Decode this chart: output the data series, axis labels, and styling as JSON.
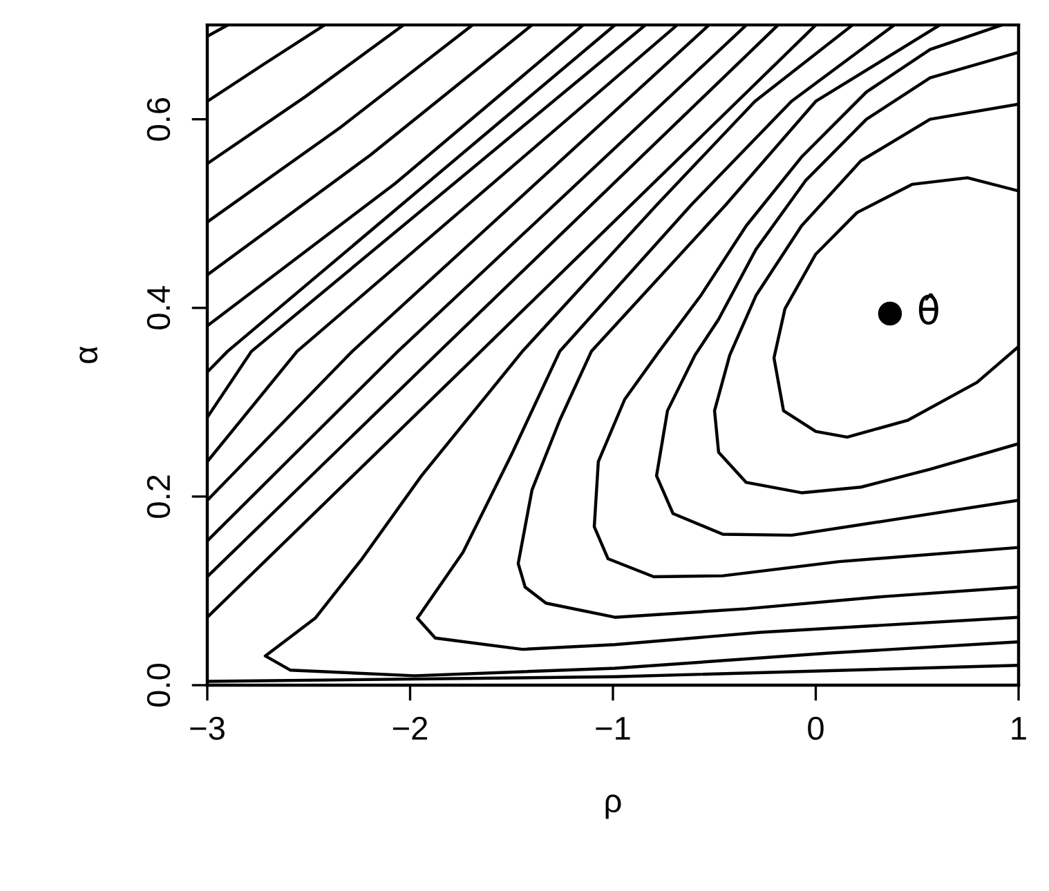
{
  "chart_data": {
    "type": "line",
    "xlabel": "ρ",
    "ylabel": "α",
    "xlim": [
      -3,
      1
    ],
    "ylim": [
      0,
      0.7
    ],
    "xticks": [
      {
        "value": -3,
        "label": "−3"
      },
      {
        "value": -2,
        "label": "−2"
      },
      {
        "value": -1,
        "label": "−1"
      },
      0,
      1
    ],
    "yticks": [
      {
        "value": 0,
        "label": "0.0"
      },
      {
        "value": 0.2,
        "label": "0.2"
      },
      {
        "value": 0.4,
        "label": "0.4"
      },
      {
        "value": 0.6,
        "label": "0.6"
      }
    ],
    "grid": false,
    "legend": false,
    "marker": "none",
    "line_style": "solid",
    "annotations": [
      {
        "text": "θ̂",
        "x": 0.366,
        "y": 0.394
      }
    ],
    "series": [
      {
        "color": "#000000",
        "x": [
          1.0,
          0.748,
          0.475,
          0.203,
          0.0,
          -0.152,
          -0.206,
          -0.159,
          0.0,
          0.155,
          0.455,
          0.795,
          1.0
        ],
        "values": [
          0.524,
          0.538,
          0.531,
          0.501,
          0.457,
          0.399,
          0.347,
          0.291,
          0.269,
          0.263,
          0.281,
          0.321,
          0.359
        ]
      },
      {
        "color": "#000000",
        "x": [
          1.0,
          0.564,
          0.223,
          -0.07,
          -0.295,
          -0.424,
          -0.499,
          -0.479,
          -0.343,
          -0.07,
          0.223,
          0.564,
          1.0
        ],
        "values": [
          0.616,
          0.6,
          0.556,
          0.487,
          0.413,
          0.35,
          0.291,
          0.247,
          0.215,
          0.204,
          0.21,
          0.229,
          0.256
        ]
      },
      {
        "color": "#000000",
        "x": [
          1.0,
          0.564,
          0.25,
          -0.05,
          -0.295,
          -0.479,
          -0.595,
          -0.731,
          -0.785,
          -0.704,
          -0.458,
          -0.118,
          0.339,
          1.0
        ],
        "values": [
          0.671,
          0.644,
          0.6,
          0.535,
          0.462,
          0.388,
          0.35,
          0.291,
          0.222,
          0.182,
          0.16,
          0.159,
          0.174,
          0.196
        ]
      },
      {
        "color": "#000000",
        "x": [
          0.918,
          0.564,
          0.25,
          -0.07,
          -0.343,
          -0.567,
          -0.772,
          -0.942,
          -1.072,
          -1.092,
          -1.024,
          -0.799,
          -0.458,
          0.114,
          1.0
        ],
        "values": [
          0.7,
          0.674,
          0.629,
          0.56,
          0.487,
          0.413,
          0.354,
          0.303,
          0.237,
          0.168,
          0.134,
          0.115,
          0.116,
          0.131,
          0.146
        ]
      },
      {
        "color": "#000000",
        "x": [
          0.612,
          0.0,
          -0.445,
          -1.106,
          -1.262,
          -1.399,
          -1.467,
          -1.433,
          -1.33,
          -0.99,
          -0.343,
          0.339,
          1.0
        ],
        "values": [
          0.7,
          0.619,
          0.509,
          0.354,
          0.281,
          0.207,
          0.129,
          0.104,
          0.087,
          0.072,
          0.081,
          0.094,
          0.104
        ]
      },
      {
        "color": "#000000",
        "x": [
          0.387,
          -0.12,
          -0.615,
          -1.262,
          -1.501,
          -1.739,
          -1.964,
          -1.876,
          -1.446,
          -0.99,
          -0.274,
          1.0
        ],
        "values": [
          0.7,
          0.619,
          0.509,
          0.354,
          0.244,
          0.141,
          0.071,
          0.05,
          0.038,
          0.043,
          0.056,
          0.072
        ]
      },
      {
        "color": "#000000",
        "x": [
          0.182,
          -0.3,
          -0.785,
          -1.446,
          -1.944,
          -2.237,
          -2.468,
          -2.714,
          -2.591,
          -1.978,
          -0.99,
          0.066,
          1.0
        ],
        "values": [
          0.7,
          0.619,
          0.509,
          0.354,
          0.222,
          0.134,
          0.071,
          0.031,
          0.016,
          0.01,
          0.018,
          0.034,
          0.046
        ]
      },
      {
        "color": "#000000",
        "x": [
          -3,
          -0.99,
          1.0
        ],
        "values": [
          0.004,
          0.009,
          0.021
        ]
      },
      {
        "color": "#000000",
        "x": [
          -3,
          -2.898
        ],
        "values": [
          0.688,
          0.7
        ]
      },
      {
        "color": "#000000",
        "x": [
          -3,
          -2.71,
          -2.421
        ],
        "values": [
          0.619,
          0.66,
          0.7
        ]
      },
      {
        "color": "#000000",
        "x": [
          -3,
          -2.516,
          -2.032
        ],
        "values": [
          0.553,
          0.624,
          0.7
        ]
      },
      {
        "color": "#000000",
        "x": [
          -3,
          -2.346,
          -1.692
        ],
        "values": [
          0.491,
          0.591,
          0.7
        ]
      },
      {
        "color": "#000000",
        "x": [
          -3,
          -2.196,
          -1.399
        ],
        "values": [
          0.435,
          0.562,
          0.7
        ]
      },
      {
        "color": "#000000",
        "x": [
          -3,
          -2.073,
          -1.147
        ],
        "values": [
          0.381,
          0.532,
          0.7
        ]
      },
      {
        "color": "#000000",
        "x": [
          -3,
          -2.9,
          -0.99
        ],
        "values": [
          0.332,
          0.354,
          0.7
        ]
      },
      {
        "color": "#000000",
        "x": [
          -3,
          -2.782,
          -0.84
        ],
        "values": [
          0.284,
          0.354,
          0.7
        ]
      },
      {
        "color": "#000000",
        "x": [
          -3,
          -2.557,
          -0.683
        ],
        "values": [
          0.237,
          0.354,
          0.7
        ]
      },
      {
        "color": "#000000",
        "x": [
          -3,
          -2.285,
          -0.526
        ],
        "values": [
          0.196,
          0.354,
          0.7
        ]
      },
      {
        "color": "#000000",
        "x": [
          -3,
          -2.06,
          -0.342
        ],
        "values": [
          0.153,
          0.354,
          0.7
        ]
      },
      {
        "color": "#000000",
        "x": [
          -3,
          -1.855,
          -0.186
        ],
        "values": [
          0.115,
          0.354,
          0.7
        ]
      },
      {
        "color": "#000000",
        "x": [
          -3,
          -1.651,
          0.0
        ],
        "values": [
          0.072,
          0.354,
          0.7
        ]
      },
      {
        "type": "scatter",
        "marker": "circle",
        "color": "#000000",
        "x": [
          0.366
        ],
        "values": [
          0.394
        ]
      }
    ]
  }
}
